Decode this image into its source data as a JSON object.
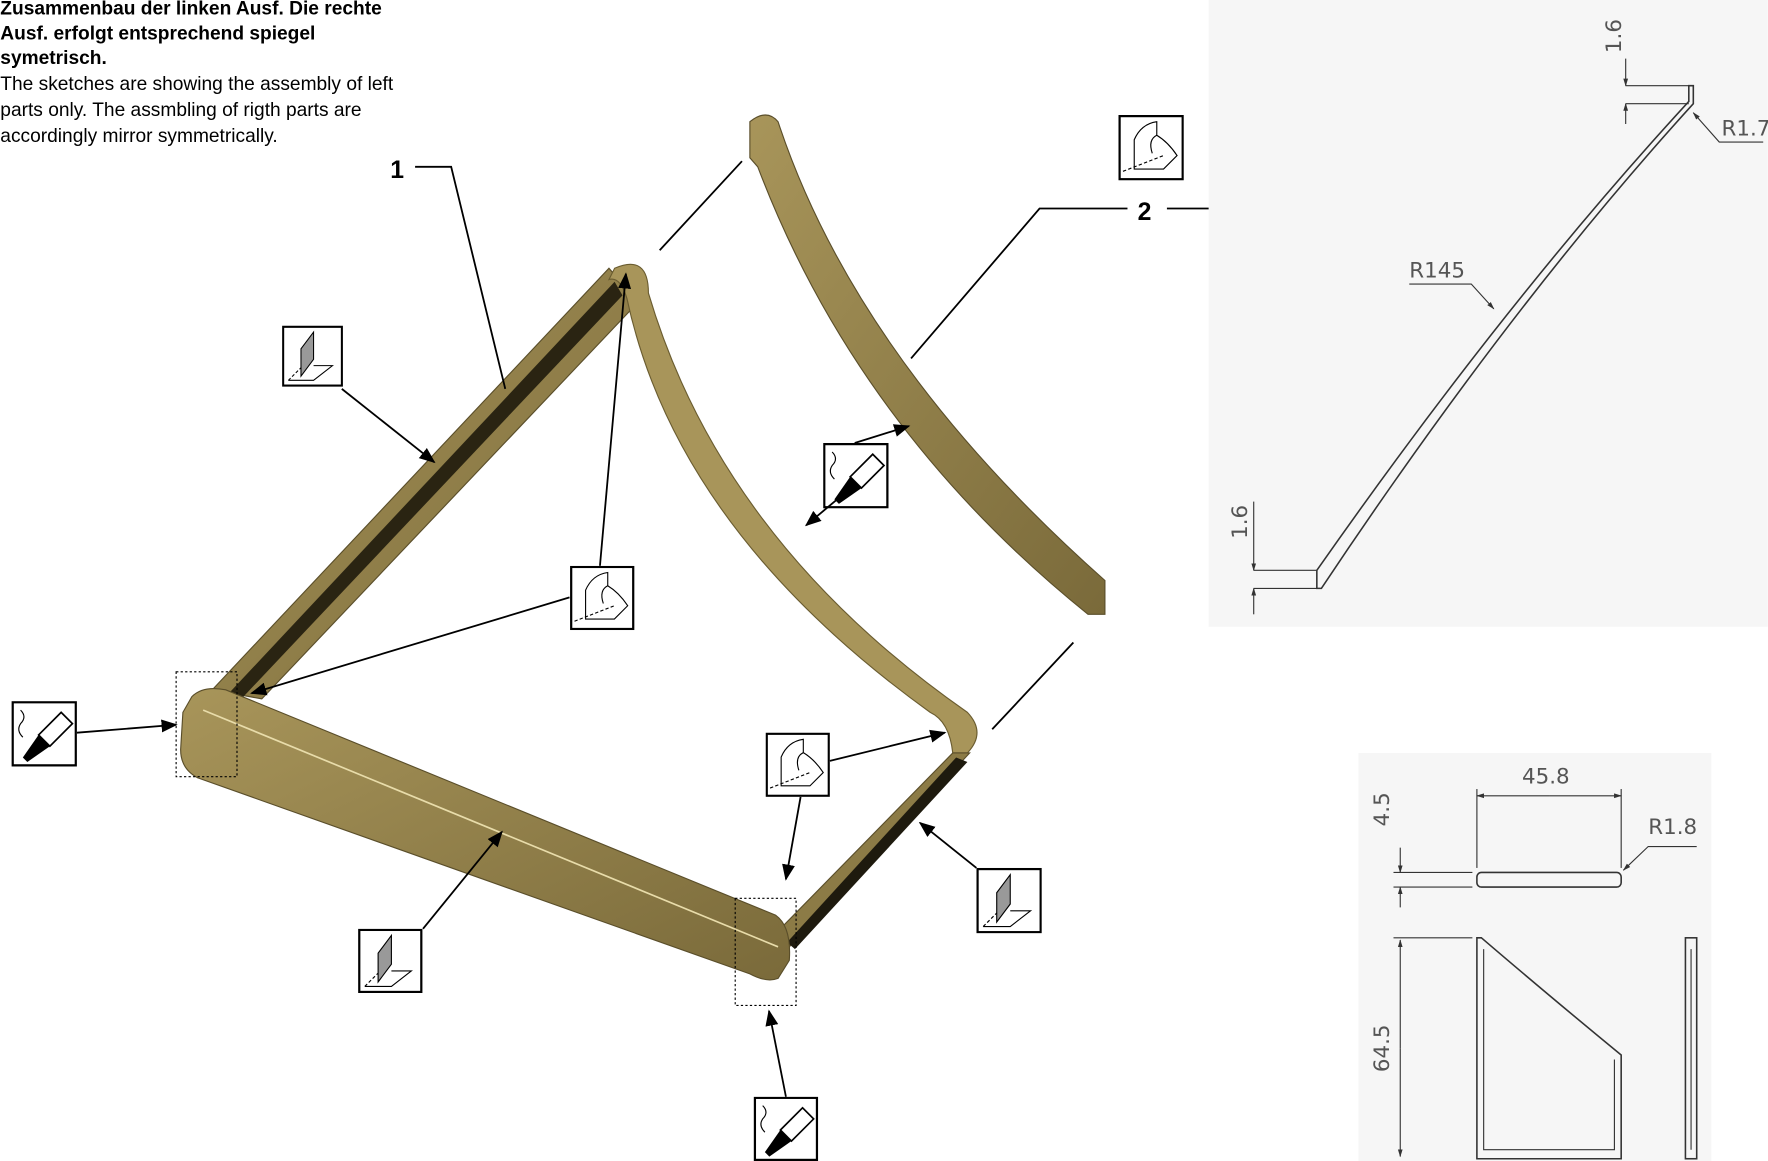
{
  "notes": {
    "german": [
      "Zusammenbau der linken Ausf. Die rechte",
      "Ausf. erfolgt entsprechend spiegel",
      "symetrisch."
    ],
    "english": [
      "The sketches are showing the assembly of left",
      "parts only. The assmbling of rigth parts are",
      "accordingly mirror symmetrically."
    ]
  },
  "callouts": [
    "1",
    "2"
  ],
  "part2_dimensions": {
    "top_thickness": "1.6",
    "top_radius": "R1.7",
    "arc_radius": "R145",
    "bottom_thickness": "1.6"
  },
  "part1_dimensions": {
    "width": "45.8",
    "thickness": "4.5",
    "radius": "R1.8",
    "height": "64.5"
  }
}
